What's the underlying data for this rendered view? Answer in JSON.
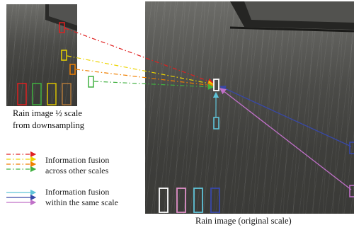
{
  "small_image_caption": [
    "Rain image ½ scale",
    "from downsampling"
  ],
  "large_image_caption": "Rain image (original scale)",
  "legend": [
    {
      "lines": [
        "Information fusion",
        "across other scales"
      ],
      "colors": [
        "#e02020",
        "#f0d000",
        "#f07f00",
        "#40b040"
      ]
    },
    {
      "lines": [
        "Information fusion",
        "within the same scale"
      ],
      "colors": [
        "#5fb8d8",
        "#4050b8",
        "#b060c0"
      ]
    }
  ],
  "colors": {
    "red": "#e02020",
    "yellow": "#ecd400",
    "orange": "#f07f00",
    "green": "#40b040",
    "white": "#ffffff",
    "cyan": "#5fc3d8",
    "blue": "#3848a8",
    "purple": "#c070c8",
    "pink": "#e090c8",
    "gray": "#9a9a9a",
    "brown": "#b0783a"
  }
}
